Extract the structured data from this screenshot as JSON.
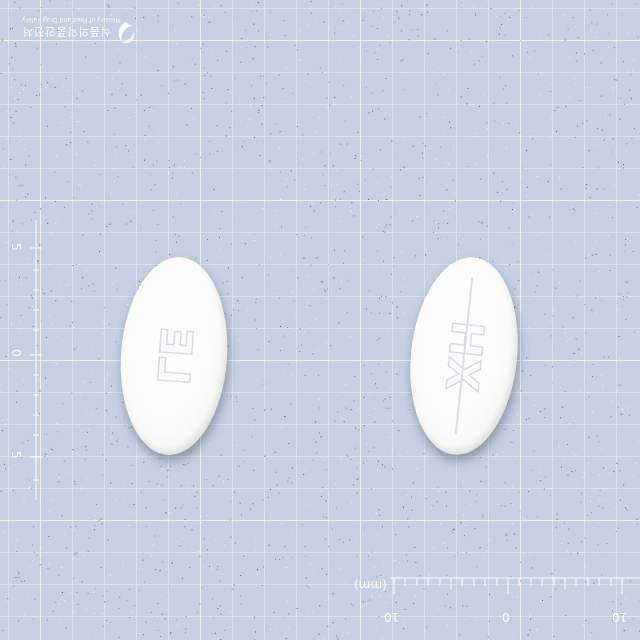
{
  "logo": {
    "icon": "leaf-swirl-icon",
    "text": "식품의약품안전처",
    "subtext": "Ministry of Food and Drug Safety"
  },
  "vertical_scale": {
    "labels": [
      "5",
      "0",
      "5"
    ]
  },
  "ruler": {
    "unit": "(mm)",
    "labels": [
      "10",
      "0",
      "10"
    ]
  },
  "tablets": [
    {
      "imprint": "LE",
      "color": "#ffffff",
      "shape": "oval",
      "score_line": false
    },
    {
      "imprint": "XH",
      "color": "#ffffff",
      "shape": "oval",
      "score_line": true
    }
  ],
  "colors": {
    "background": "#c3d1e2",
    "grid": "#ffffff"
  }
}
